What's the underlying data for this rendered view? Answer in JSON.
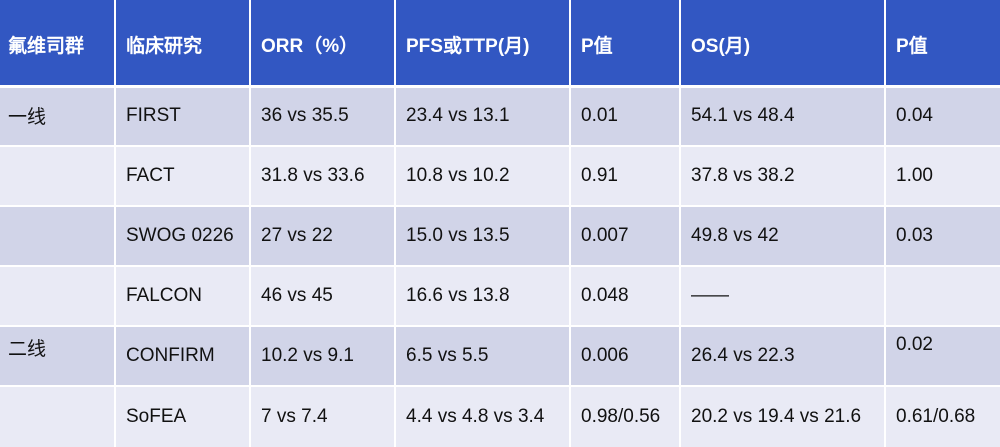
{
  "columns": [
    "氟维司群",
    "临床研究",
    "ORR（%）",
    "PFS或TTP(月)",
    "P值",
    "OS(月)",
    "P值"
  ],
  "rows": [
    {
      "line": "一线",
      "study": "FIRST",
      "orr": "36 vs 35.5",
      "pfs": "23.4 vs 13.1",
      "p1": "0.01",
      "os": "54.1 vs 48.4",
      "p2": "0.04"
    },
    {
      "line": "",
      "study": "FACT",
      "orr": "31.8 vs 33.6",
      "pfs": "10.8 vs 10.2",
      "p1": "0.91",
      "os": "37.8 vs 38.2",
      "p2": "1.00"
    },
    {
      "line": "",
      "study": "SWOG 0226",
      "orr": "27 vs 22",
      "pfs": "15.0 vs 13.5",
      "p1": "0.007",
      "os": "49.8 vs 42",
      "p2": "0.03"
    },
    {
      "line": "",
      "study": "FALCON",
      "orr": "46 vs 45",
      "pfs": "16.6 vs 13.8",
      "p1": "0.048",
      "os": "——",
      "p2": ""
    },
    {
      "line": "二线",
      "study": "CONFIRM",
      "orr": "10.2 vs 9.1",
      "pfs": "6.5 vs 5.5",
      "p1": "0.006",
      "os": "26.4 vs 22.3",
      "p2": "0.02"
    },
    {
      "line": "",
      "study": "SoFEA",
      "orr": "7 vs 7.4",
      "pfs": "4.4 vs 4.8 vs 3.4",
      "p1": "0.98/0.56",
      "os": "20.2 vs 19.4 vs 21.6",
      "p2": "0.61/0.68"
    }
  ]
}
